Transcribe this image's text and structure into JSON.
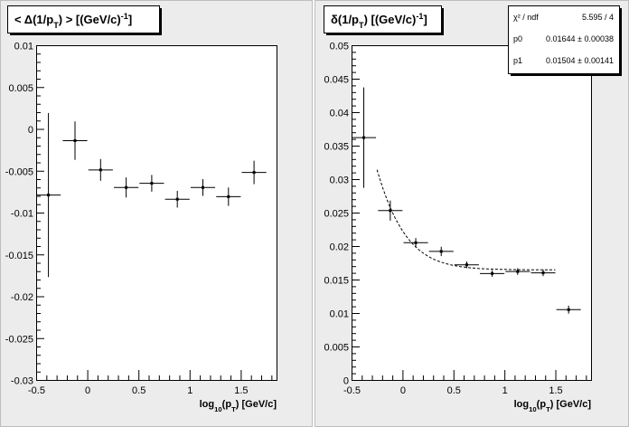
{
  "chart_data": [
    {
      "type": "scatter",
      "title_parts": [
        "< Δ(1/p",
        "T",
        ") >  [(GeV/c)",
        "-1",
        "]"
      ],
      "xlabel_parts": [
        "log",
        "10",
        "(p",
        "T",
        ")  [GeV/c]"
      ],
      "xlim": [
        -0.5,
        1.85
      ],
      "ylim": [
        -0.03,
        0.01
      ],
      "xticks": [
        -0.5,
        0,
        0.5,
        1,
        1.5
      ],
      "xtick_labels": [
        "-0.5",
        "0",
        "0.5",
        "1",
        "1.5"
      ],
      "yticks": [
        -0.03,
        -0.025,
        -0.02,
        -0.015,
        -0.01,
        -0.005,
        0,
        0.005,
        0.01
      ],
      "ytick_labels": [
        "-0.03",
        "-0.025",
        "-0.02",
        "-0.015",
        "-0.01",
        "-0.005",
        "0",
        "0.005",
        "0.01"
      ],
      "points": [
        {
          "x": -0.38,
          "xerr": 0.12,
          "y": -0.0079,
          "yerr": 0.0098
        },
        {
          "x": -0.12,
          "xerr": 0.12,
          "y": -0.0014,
          "yerr": 0.0023
        },
        {
          "x": 0.13,
          "xerr": 0.12,
          "y": -0.0049,
          "yerr": 0.0013
        },
        {
          "x": 0.38,
          "xerr": 0.12,
          "y": -0.007,
          "yerr": 0.0012
        },
        {
          "x": 0.63,
          "xerr": 0.12,
          "y": -0.0065,
          "yerr": 0.001
        },
        {
          "x": 0.88,
          "xerr": 0.12,
          "y": -0.0084,
          "yerr": 0.001
        },
        {
          "x": 1.13,
          "xerr": 0.12,
          "y": -0.007,
          "yerr": 0.001
        },
        {
          "x": 1.38,
          "xerr": 0.12,
          "y": -0.0081,
          "yerr": 0.0011
        },
        {
          "x": 1.63,
          "xerr": 0.12,
          "y": -0.0052,
          "yerr": 0.0014
        }
      ]
    },
    {
      "type": "scatter",
      "title_parts": [
        "δ(1/p",
        "T",
        ")  [(GeV/c)",
        "-1",
        "]"
      ],
      "xlabel_parts": [
        "log",
        "10",
        "(p",
        "T",
        ")  [GeV/c]"
      ],
      "xlim": [
        -0.5,
        1.85
      ],
      "ylim": [
        0,
        0.05
      ],
      "xticks": [
        -0.5,
        0,
        0.5,
        1,
        1.5
      ],
      "xtick_labels": [
        "-0.5",
        "0",
        "0.5",
        "1",
        "1.5"
      ],
      "yticks": [
        0,
        0.005,
        0.01,
        0.015,
        0.02,
        0.025,
        0.03,
        0.035,
        0.04,
        0.045,
        0.05
      ],
      "ytick_labels": [
        "0",
        "0.005",
        "0.01",
        "0.015",
        "0.02",
        "0.025",
        "0.03",
        "0.035",
        "0.04",
        "0.045",
        "0.05"
      ],
      "points": [
        {
          "x": -0.38,
          "xerr": 0.12,
          "y": 0.0362,
          "yerr": 0.0075
        },
        {
          "x": -0.12,
          "xerr": 0.12,
          "y": 0.0253,
          "yerr": 0.0015
        },
        {
          "x": 0.13,
          "xerr": 0.12,
          "y": 0.0205,
          "yerr": 0.0007
        },
        {
          "x": 0.38,
          "xerr": 0.12,
          "y": 0.0192,
          "yerr": 0.0007
        },
        {
          "x": 0.63,
          "xerr": 0.12,
          "y": 0.0172,
          "yerr": 0.0005
        },
        {
          "x": 0.88,
          "xerr": 0.12,
          "y": 0.0159,
          "yerr": 0.0005
        },
        {
          "x": 1.13,
          "xerr": 0.12,
          "y": 0.0162,
          "yerr": 0.0005
        },
        {
          "x": 1.38,
          "xerr": 0.12,
          "y": 0.016,
          "yerr": 0.0005
        },
        {
          "x": 1.63,
          "xerr": 0.12,
          "y": 0.0105,
          "yerr": 0.0006
        }
      ],
      "fit": {
        "x_range": [
          -0.25,
          1.5
        ],
        "p0": 0.01644,
        "p1": 0.01504
      },
      "stats": [
        {
          "label": "χ² / ndf",
          "value": "5.595 / 4"
        },
        {
          "label": "p0",
          "value": "0.01644 ± 0.00038"
        },
        {
          "label": "p1",
          "value": "0.01504 ± 0.00141"
        }
      ]
    }
  ]
}
